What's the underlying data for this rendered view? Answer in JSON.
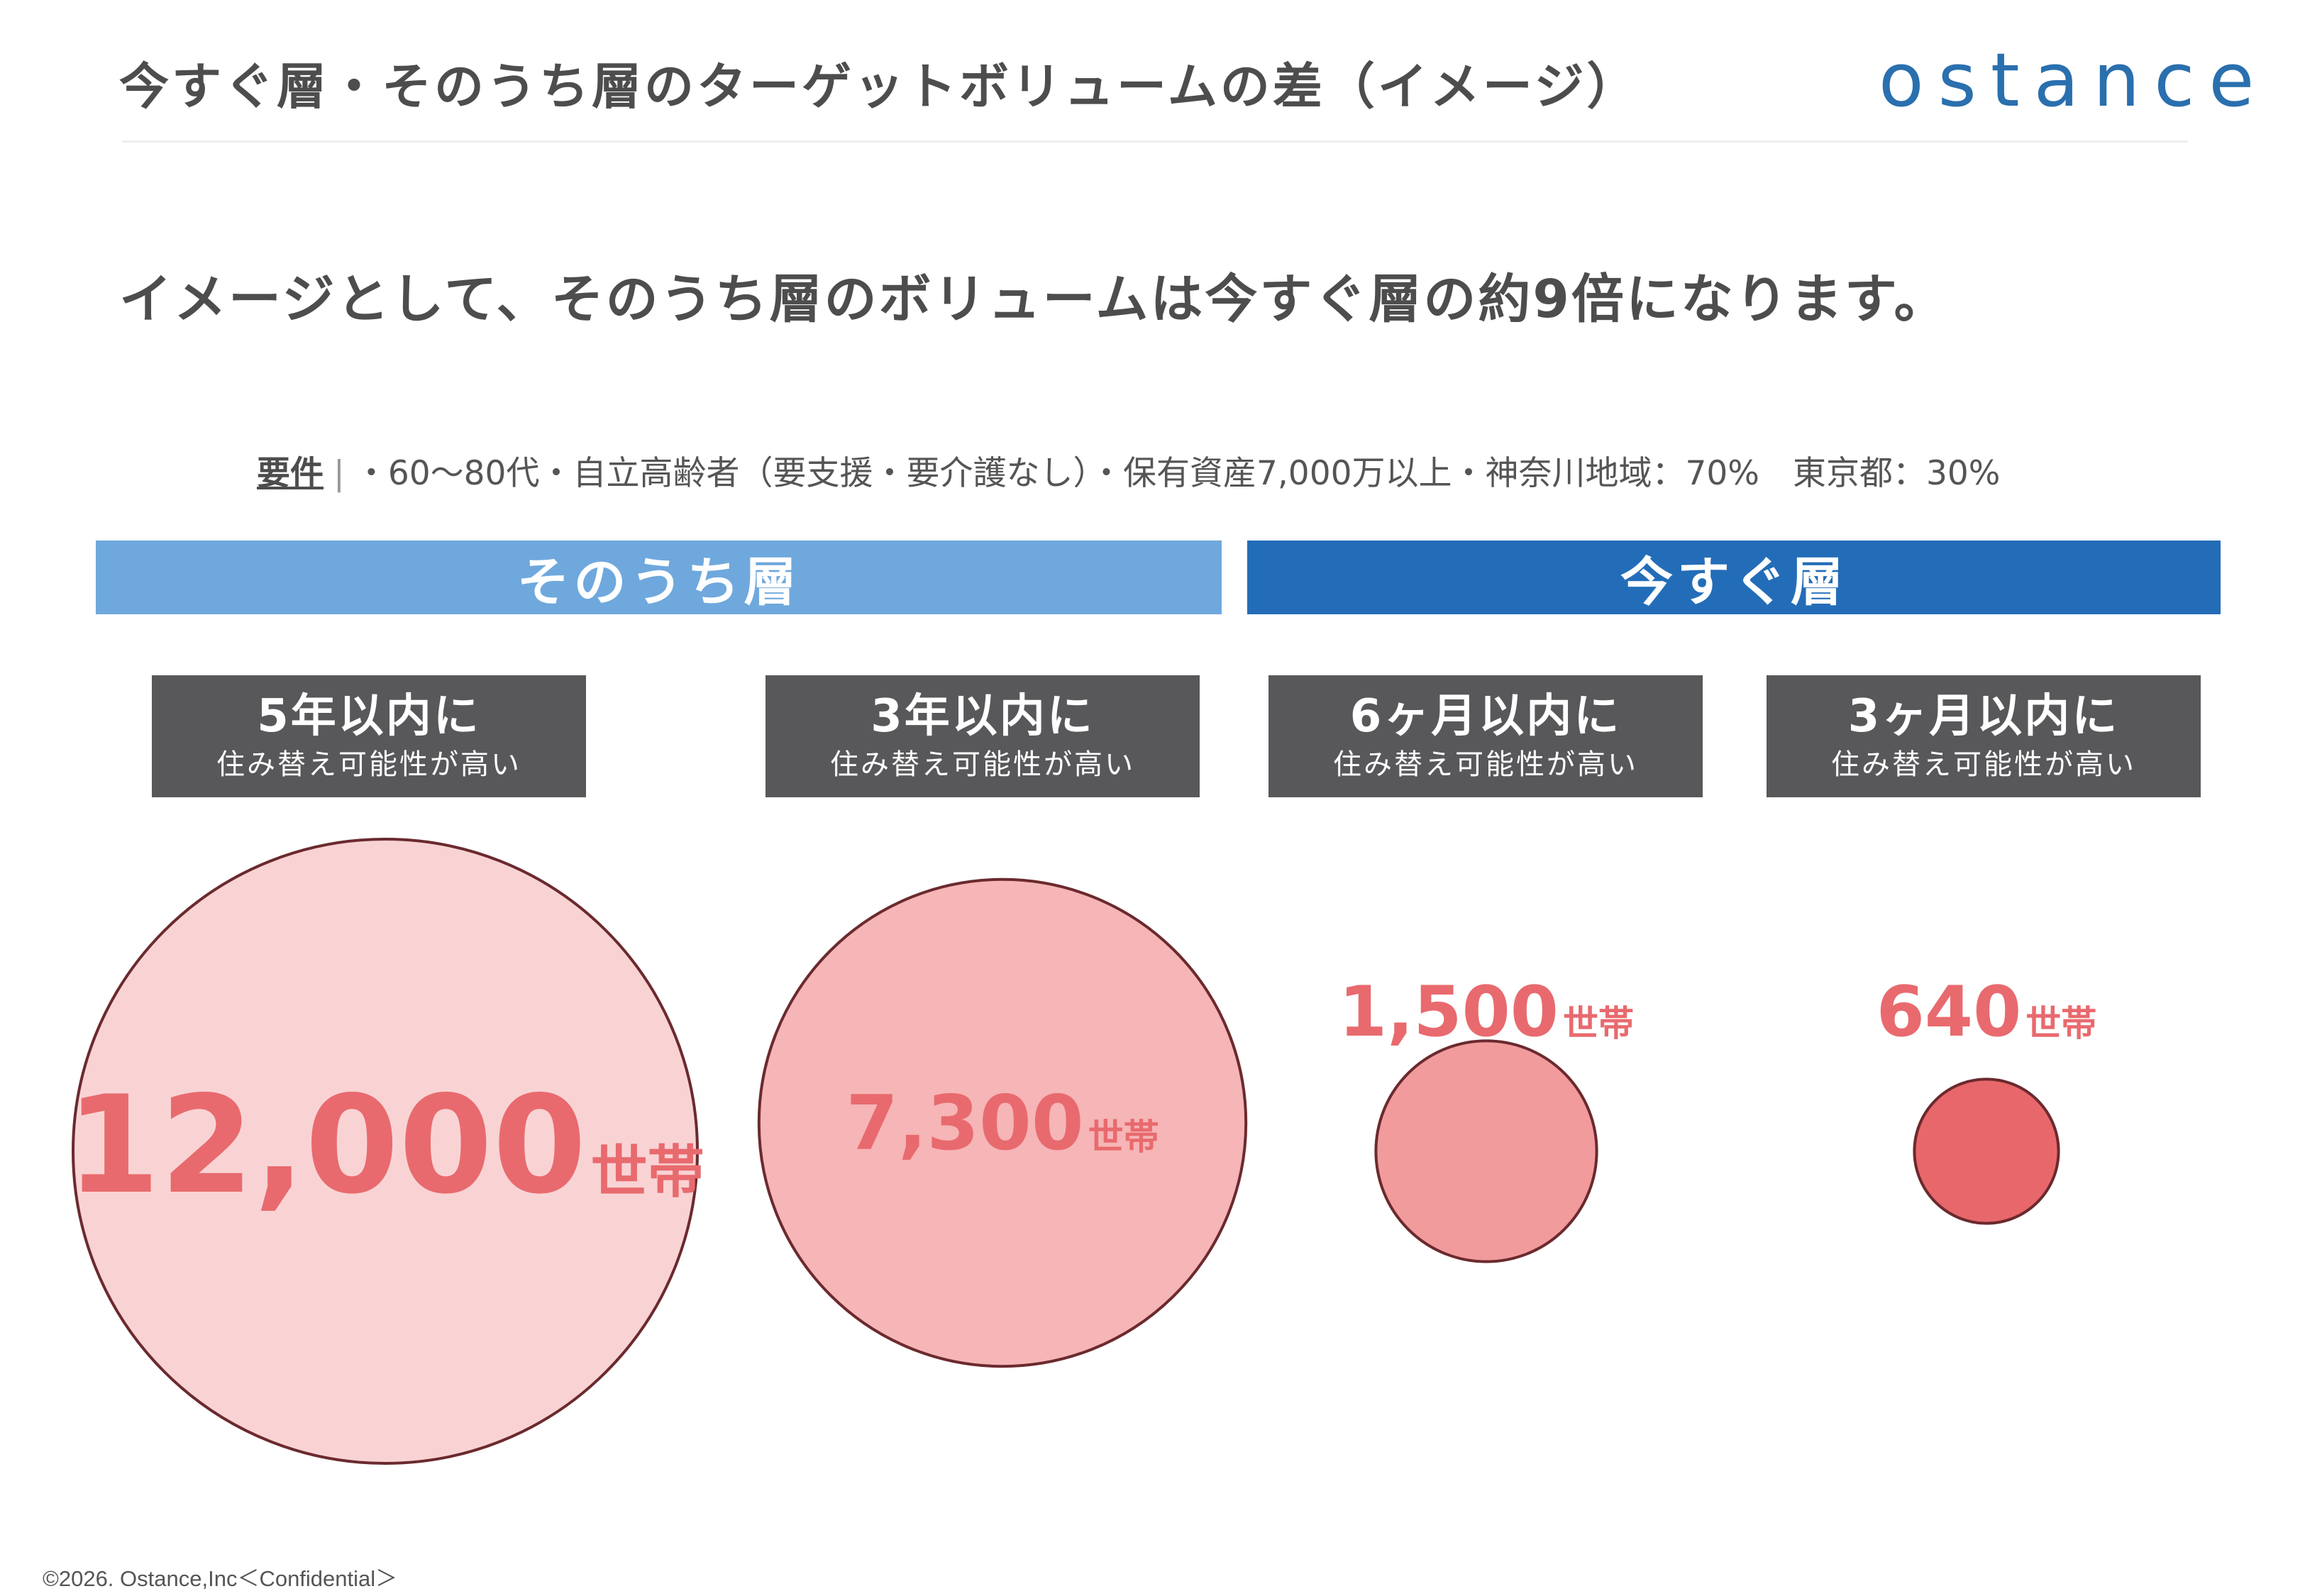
{
  "header": {
    "title": "今すぐ層・そのうち層のターゲットボリュームの差（イメージ）",
    "logo_text": "ostance"
  },
  "headline": "イメージとして、そのうち層のボリュームは今すぐ層の約9倍になります。",
  "requirements": {
    "label": "要件",
    "separator": "|",
    "text": "・60～80代・自立高齢者（要支援・要介護なし）・保有資産7,000万以上・神奈川地域：70%　東京都：30%"
  },
  "groups": [
    {
      "label": "そのうち層",
      "color": "#6fa8dd"
    },
    {
      "label": "今すぐ層",
      "color": "#236db8"
    }
  ],
  "categories": [
    {
      "head": "5年以内に",
      "sub": "住み替え可能性が高い"
    },
    {
      "head": "3年以内に",
      "sub": "住み替え可能性が高い"
    },
    {
      "head": "6ヶ月以内に",
      "sub": "住み替え可能性が高い"
    },
    {
      "head": "3ヶ月以内に",
      "sub": "住み替え可能性が高い"
    }
  ],
  "chart_data": {
    "type": "bubble",
    "title": "",
    "unit": "世帯",
    "categories": [
      "5年以内に",
      "3年以内に",
      "6ヶ月以内に",
      "3ヶ月以内に"
    ],
    "groups": [
      "そのうち層",
      "そのうち層",
      "今すぐ層",
      "今すぐ層"
    ],
    "values": [
      12000,
      7300,
      1500,
      640
    ],
    "value_labels": [
      "12,000",
      "7,300",
      "1,500",
      "640"
    ],
    "fill_colors": [
      "#f9d3d4",
      "#f6b5b6",
      "#f19b9c",
      "#e8676b"
    ],
    "stroke_color": "#6b2a2e",
    "label_color": "#e86a6e"
  },
  "footer": "©2026. Ostance,Inc＜Confidential＞"
}
